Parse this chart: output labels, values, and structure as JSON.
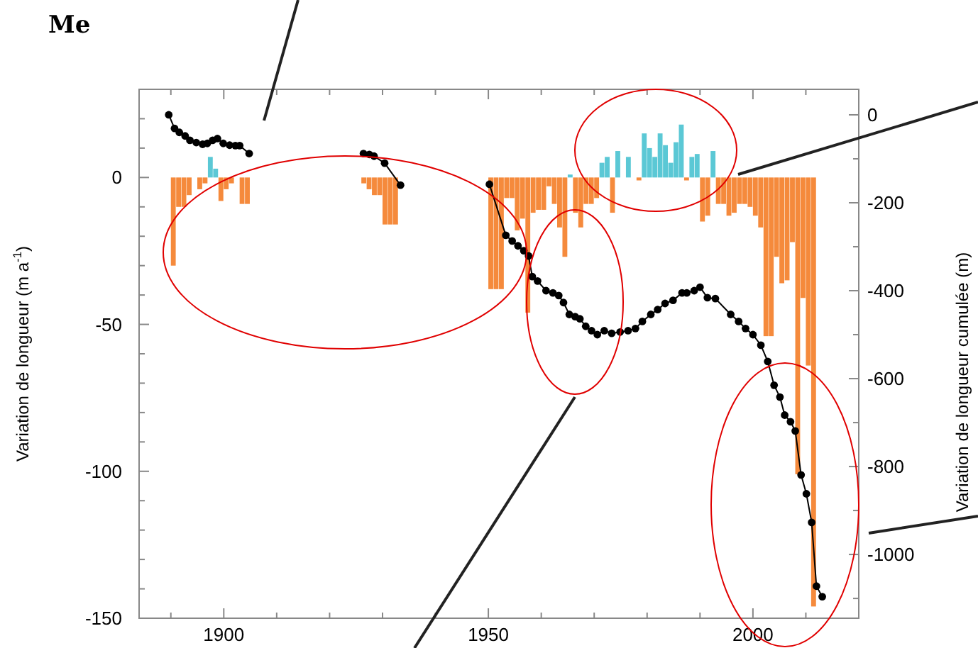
{
  "chart_data": {
    "type": "bar",
    "title": "Me",
    "ylabel": "Variation de longueur  (m a$^{-1}$)",
    "y2label": "Variation de longueur cumulée  (m)",
    "xlim": [
      1884,
      2020
    ],
    "xticks": [
      {
        "value": 1890,
        "label": null
      },
      1900,
      {
        "value": 1910,
        "label": null
      },
      {
        "value": 1920,
        "label": null
      },
      {
        "value": 1930,
        "label": null
      },
      {
        "value": 1940,
        "label": null
      },
      1950,
      {
        "value": 1960,
        "label": null
      },
      {
        "value": 1970,
        "label": null
      },
      {
        "value": 1980,
        "label": null
      },
      {
        "value": 1990,
        "label": null
      },
      2000,
      {
        "value": 2010,
        "label": null
      }
    ],
    "ylim": [
      -150,
      30
    ],
    "yticks": [
      -150,
      {
        "value": -140,
        "label": null
      },
      {
        "value": -130,
        "label": null
      },
      {
        "value": -120,
        "label": null
      },
      {
        "value": -110,
        "label": null
      },
      -100,
      {
        "value": -90,
        "label": null
      },
      {
        "value": -80,
        "label": null
      },
      {
        "value": -70,
        "label": null
      },
      {
        "value": -60,
        "label": null
      },
      -50,
      {
        "value": -40,
        "label": null
      },
      {
        "value": -30,
        "label": null
      },
      {
        "value": -20,
        "label": null
      },
      {
        "value": -10,
        "label": null
      },
      0,
      {
        "value": 10,
        "label": null
      },
      {
        "value": 20,
        "label": null
      }
    ],
    "y2lim": [
      -1145,
      58
    ],
    "y2ticks": [
      {
        "value": -1100,
        "label": null
      },
      -1000,
      {
        "value": -900,
        "label": null
      },
      -800,
      {
        "value": -700,
        "label": null
      },
      -600,
      {
        "value": -500,
        "label": null
      },
      -400,
      {
        "value": -300,
        "label": null
      },
      -200,
      {
        "value": -100,
        "label": null
      },
      0
    ],
    "series": [
      {
        "x": [
          1890,
          1891,
          1892,
          1893,
          1895,
          1896,
          1897,
          1898,
          1899,
          1900,
          1901,
          1903,
          1904,
          1926,
          1927,
          1928,
          1929,
          1930,
          1931,
          1932,
          1950,
          1951,
          1952,
          1953,
          1954,
          1955,
          1956,
          1957,
          1958,
          1959,
          1960,
          1961,
          1962,
          1963,
          1964,
          1965,
          1966,
          1967,
          1968,
          1969,
          1970,
          1971,
          1972,
          1973,
          1974,
          1976,
          1978,
          1979,
          1980,
          1981,
          1982,
          1983,
          1984,
          1985,
          1986,
          1987,
          1988,
          1989,
          1990,
          1991,
          1992,
          1993,
          1994,
          1995,
          1996,
          1997,
          1998,
          1999,
          2000,
          2001,
          2002,
          2003,
          2004,
          2005,
          2006,
          2007,
          2008,
          2009,
          2010,
          2011
        ],
        "values": [
          -30,
          -10,
          -10,
          -6,
          -4,
          -2,
          7,
          3,
          -8,
          -4,
          -2,
          -9,
          -9,
          -2,
          -4,
          -6,
          -6,
          -16,
          -16,
          -16,
          -38,
          -38,
          -38,
          -7,
          -7,
          -18,
          -14,
          -46,
          -12,
          -11,
          -11,
          -3,
          -9,
          -17,
          -27,
          1,
          -12,
          -17,
          -9,
          -9,
          -7,
          5,
          7,
          -12,
          9,
          7,
          -1,
          15,
          10,
          7,
          15,
          11,
          5,
          12,
          18,
          -1,
          7,
          8,
          -15,
          -13,
          9,
          -9,
          -9,
          -13,
          -12,
          -9,
          -9,
          -10,
          -13,
          -17,
          -54,
          -54,
          -27,
          -36,
          -35,
          -22,
          -101,
          -41,
          -64,
          -146
        ],
        "colors": [
          "#f58a3c",
          "#f58a3c",
          "#f58a3c",
          "#f58a3c",
          "#f58a3c",
          "#f58a3c",
          "#5bc8d5",
          "#5bc8d5",
          "#f58a3c",
          "#f58a3c",
          "#f58a3c",
          "#f58a3c",
          "#f58a3c",
          "#f58a3c",
          "#f58a3c",
          "#f58a3c",
          "#f58a3c",
          "#f58a3c",
          "#f58a3c",
          "#f58a3c",
          "#f58a3c",
          "#f58a3c",
          "#f58a3c",
          "#f58a3c",
          "#f58a3c",
          "#f58a3c",
          "#f58a3c",
          "#f58a3c",
          "#f58a3c",
          "#f58a3c",
          "#f58a3c",
          "#f58a3c",
          "#f58a3c",
          "#f58a3c",
          "#f58a3c",
          "#5bc8d5",
          "#f58a3c",
          "#f58a3c",
          "#f58a3c",
          "#f58a3c",
          "#f58a3c",
          "#5bc8d5",
          "#5bc8d5",
          "#f58a3c",
          "#5bc8d5",
          "#5bc8d5",
          "#f58a3c",
          "#5bc8d5",
          "#5bc8d5",
          "#5bc8d5",
          "#5bc8d5",
          "#5bc8d5",
          "#5bc8d5",
          "#5bc8d5",
          "#5bc8d5",
          "#f58a3c",
          "#5bc8d5",
          "#5bc8d5",
          "#f58a3c",
          "#f58a3c",
          "#5bc8d5",
          "#f58a3c",
          "#f58a3c",
          "#f58a3c",
          "#f58a3c",
          "#f58a3c",
          "#f58a3c",
          "#f58a3c",
          "#f58a3c",
          "#f58a3c",
          "#f58a3c",
          "#f58a3c",
          "#f58a3c",
          "#f58a3c",
          "#f58a3c",
          "#f58a3c",
          "#f58a3c",
          "#f58a3c",
          "#f58a3c",
          "#f58a3c"
        ]
      },
      {
        "type": "line",
        "axis": "y2",
        "color": "#000000",
        "marker": "circle",
        "x": [
          1889.6,
          1890.7,
          1891.6,
          1892.7,
          1893.6,
          1894.8,
          1896.0,
          1896.9,
          1897.9,
          1898.8,
          1899.9,
          1901.1,
          1902.2,
          1903.0,
          1904.8,
          1915,
          1926.4,
          1927.5,
          1928.4,
          1930.4,
          1933.4,
          1940,
          1950.2,
          1953.3,
          1954.5,
          1955.6,
          1956.7,
          1957.6,
          1958.3,
          1959.3,
          1960.9,
          1962.2,
          1963.3,
          1964.2,
          1965.3,
          1966.4,
          1967.3,
          1968.4,
          1969.5,
          1970.6,
          1971.9,
          1973.3,
          1974.9,
          1976.4,
          1977.8,
          1979.1,
          1980.7,
          1982.0,
          1983.4,
          1984.9,
          1986.6,
          1987.5,
          1988.9,
          1990.0,
          1991.4,
          1992.9,
          1995.8,
          1997.3,
          1998.6,
          2000.0,
          2001.5,
          2002.8,
          2004.0,
          2005.1,
          2006.0,
          2007.1,
          2008.0,
          2009.1,
          2010.1,
          2011.1,
          2012.0,
          2013.1
        ],
        "values": [
          0,
          -31,
          -40,
          -48,
          -58,
          -63,
          -67,
          -65,
          -58,
          -54,
          -65,
          -69,
          -70,
          -70,
          -88,
          null,
          -88,
          -90,
          -94,
          -110,
          -160,
          null,
          -158,
          -274,
          -287,
          -298,
          -309,
          -321,
          -368,
          -378,
          -400,
          -405,
          -411,
          -427,
          -454,
          -459,
          -464,
          -481,
          -491,
          -500,
          -491,
          -497,
          -494,
          -491,
          -486,
          -470,
          -454,
          -443,
          -429,
          -422,
          -405,
          -405,
          -400,
          -392,
          -416,
          -418,
          -454,
          -470,
          -486,
          -500,
          -524,
          -561,
          -615,
          -642,
          -683,
          -698,
          -719,
          -819,
          -862,
          -927,
          -1072,
          -1096
        ]
      }
    ]
  }
}
